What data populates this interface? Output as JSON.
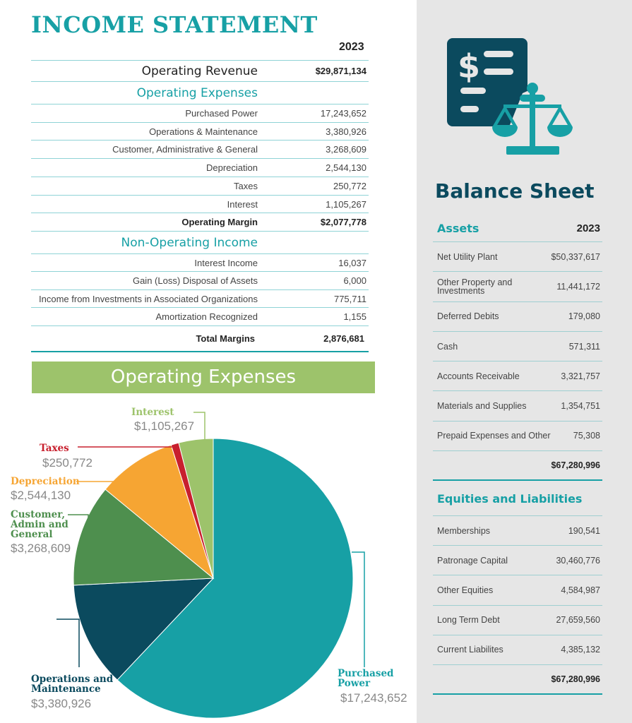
{
  "income": {
    "title": "INCOME STATEMENT",
    "year": "2023",
    "revenue": {
      "label": "Operating Revenue",
      "value": "$29,871,134"
    },
    "expenses_heading": "Operating Expenses",
    "expenses": [
      {
        "label": "Purchased Power",
        "value": "17,243,652"
      },
      {
        "label": "Operations & Maintenance",
        "value": "3,380,926"
      },
      {
        "label": "Customer, Administrative & General",
        "value": "3,268,609"
      },
      {
        "label": "Depreciation",
        "value": "2,544,130"
      },
      {
        "label": "Taxes",
        "value": "250,772"
      },
      {
        "label": "Interest",
        "value": "1,105,267"
      }
    ],
    "operating_margin": {
      "label": "Operating Margin",
      "value": "$2,077,778"
    },
    "nonop_heading": "Non-Operating Income",
    "nonop": [
      {
        "label": "Interest Income",
        "value": "16,037"
      },
      {
        "label": "Gain (Loss) Disposal of Assets",
        "value": "6,000"
      },
      {
        "label": "Income from Investments in Associated Organizations",
        "value": "775,711"
      },
      {
        "label": "Amortization Recognized",
        "value": "1,155"
      }
    ],
    "total": {
      "label": "Total Margins",
      "value": "2,876,681"
    }
  },
  "balance": {
    "title": "Balance Sheet",
    "year": "2023",
    "assets_heading": "Assets",
    "assets": [
      {
        "label": "Net Utility Plant",
        "value": "$50,337,617"
      },
      {
        "label": "Other Property and Investments",
        "value": "11,441,172"
      },
      {
        "label": "Deferred Debits",
        "value": "179,080"
      },
      {
        "label": "Cash",
        "value": "571,311"
      },
      {
        "label": "Accounts Receivable",
        "value": "3,321,757"
      },
      {
        "label": "Materials and Supplies",
        "value": "1,354,751"
      },
      {
        "label": "Prepaid Expenses and Other",
        "value": "75,308"
      }
    ],
    "assets_total": "$67,280,996",
    "eq_heading": "Equities and Liabilities",
    "eq": [
      {
        "label": "Memberships",
        "value": "190,541"
      },
      {
        "label": "Patronage Capital",
        "value": "30,460,776"
      },
      {
        "label": "Other Equities",
        "value": "4,584,987"
      },
      {
        "label": "Long Term Debt",
        "value": "27,659,560"
      },
      {
        "label": "Current Liabilites",
        "value": "4,385,132"
      }
    ],
    "eq_total": "$67,280,996"
  },
  "chart_data": {
    "type": "pie",
    "title": "Operating Expenses",
    "slices": [
      {
        "name": "Purchased Power",
        "label": "Purchased Power",
        "value": 17243652,
        "display": "$17,243,652",
        "color": "#17a0a5"
      },
      {
        "name": "Operations and Maintenance",
        "label": "Operations and Maintenance",
        "value": 3380926,
        "display": "$3,380,926",
        "color": "#0b4a5e"
      },
      {
        "name": "Customer, Admin and General",
        "label": "Customer, Admin and General",
        "value": 3268609,
        "display": "$3,268,609",
        "color": "#4e8f4e"
      },
      {
        "name": "Depreciation",
        "label": "Depreciation",
        "value": 2544130,
        "display": "$2,544,130",
        "color": "#f6a533"
      },
      {
        "name": "Taxes",
        "label": "Taxes",
        "value": 250772,
        "display": "$250,772",
        "color": "#c8202e"
      },
      {
        "name": "Interest",
        "label": "Interest",
        "value": 1105267,
        "display": "$1,105,267",
        "color": "#9dc36b"
      }
    ]
  }
}
